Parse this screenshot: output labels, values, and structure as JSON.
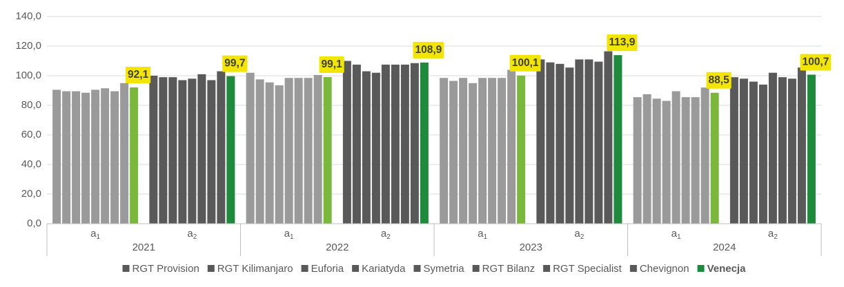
{
  "chart_data": {
    "type": "bar",
    "categories": [
      {
        "label": "a",
        "sub": "1",
        "shade": "light"
      },
      {
        "label": "a",
        "sub": "2",
        "shade": "dark"
      },
      {
        "label": "a",
        "sub": "1",
        "shade": "light"
      },
      {
        "label": "a",
        "sub": "2",
        "shade": "dark"
      },
      {
        "label": "a",
        "sub": "1",
        "shade": "light"
      },
      {
        "label": "a",
        "sub": "2",
        "shade": "dark"
      },
      {
        "label": "a",
        "sub": "1",
        "shade": "light"
      },
      {
        "label": "a",
        "sub": "2",
        "shade": "dark"
      }
    ],
    "groups": [
      "2021",
      "2022",
      "2023",
      "2024"
    ],
    "series": [
      {
        "name": "RGT Provision",
        "color": "#595959",
        "light_color": "#9a9a9a",
        "values": [
          90.5,
          100,
          102,
          110,
          98.5,
          111,
          85.5,
          99
        ]
      },
      {
        "name": "RGT Kilimanjaro",
        "color": "#595959",
        "light_color": "#9a9a9a",
        "values": [
          89.5,
          99,
          97.5,
          107.5,
          96.5,
          109,
          87.5,
          98
        ]
      },
      {
        "name": "Euforia",
        "color": "#595959",
        "light_color": "#9a9a9a",
        "values": [
          89.5,
          99,
          95.5,
          103,
          98.5,
          108,
          84.5,
          96
        ]
      },
      {
        "name": "Kariatyda",
        "color": "#595959",
        "light_color": "#9a9a9a",
        "values": [
          88.5,
          97,
          93.5,
          102,
          95,
          105.5,
          83,
          94
        ]
      },
      {
        "name": "Symetria",
        "color": "#595959",
        "light_color": "#9a9a9a",
        "values": [
          90.5,
          98,
          98.5,
          107.5,
          98.5,
          111,
          89.5,
          102
        ]
      },
      {
        "name": "RGT Bilanz",
        "color": "#595959",
        "light_color": "#9a9a9a",
        "values": [
          91.5,
          101,
          98.5,
          107.5,
          98.5,
          111,
          85.5,
          99
        ]
      },
      {
        "name": "RGT Specialist",
        "color": "#595959",
        "light_color": "#9a9a9a",
        "values": [
          89.5,
          97,
          98.5,
          107.5,
          98.5,
          109.5,
          85.5,
          98
        ]
      },
      {
        "name": "Chevignon",
        "color": "#595959",
        "light_color": "#9a9a9a",
        "values": [
          95,
          103,
          100.5,
          108.5,
          104,
          116.5,
          92,
          105.5
        ]
      },
      {
        "name": "Venecja",
        "color": "#1e8a3c",
        "light_color": "#7ab83c",
        "bold": true,
        "values": [
          92.1,
          99.7,
          99.1,
          108.9,
          100.1,
          113.9,
          88.5,
          100.7
        ],
        "value_labels": [
          "92,1",
          "99,7",
          "99,1",
          "108,9",
          "100,1",
          "113,9",
          "88,5",
          "100,7"
        ]
      }
    ],
    "ylim": [
      0,
      140
    ],
    "yticks": [
      {
        "value": 0,
        "label": "0,0"
      },
      {
        "value": 20,
        "label": "20,0"
      },
      {
        "value": 40,
        "label": "40,0"
      },
      {
        "value": 60,
        "label": "60,0"
      },
      {
        "value": 80,
        "label": "80,0"
      },
      {
        "value": 100,
        "label": "100,0"
      },
      {
        "value": 120,
        "label": "120,0"
      },
      {
        "value": 140,
        "label": "140,0"
      }
    ],
    "grid": true,
    "value_label_background": "#f2e600",
    "legend": "bottom"
  }
}
